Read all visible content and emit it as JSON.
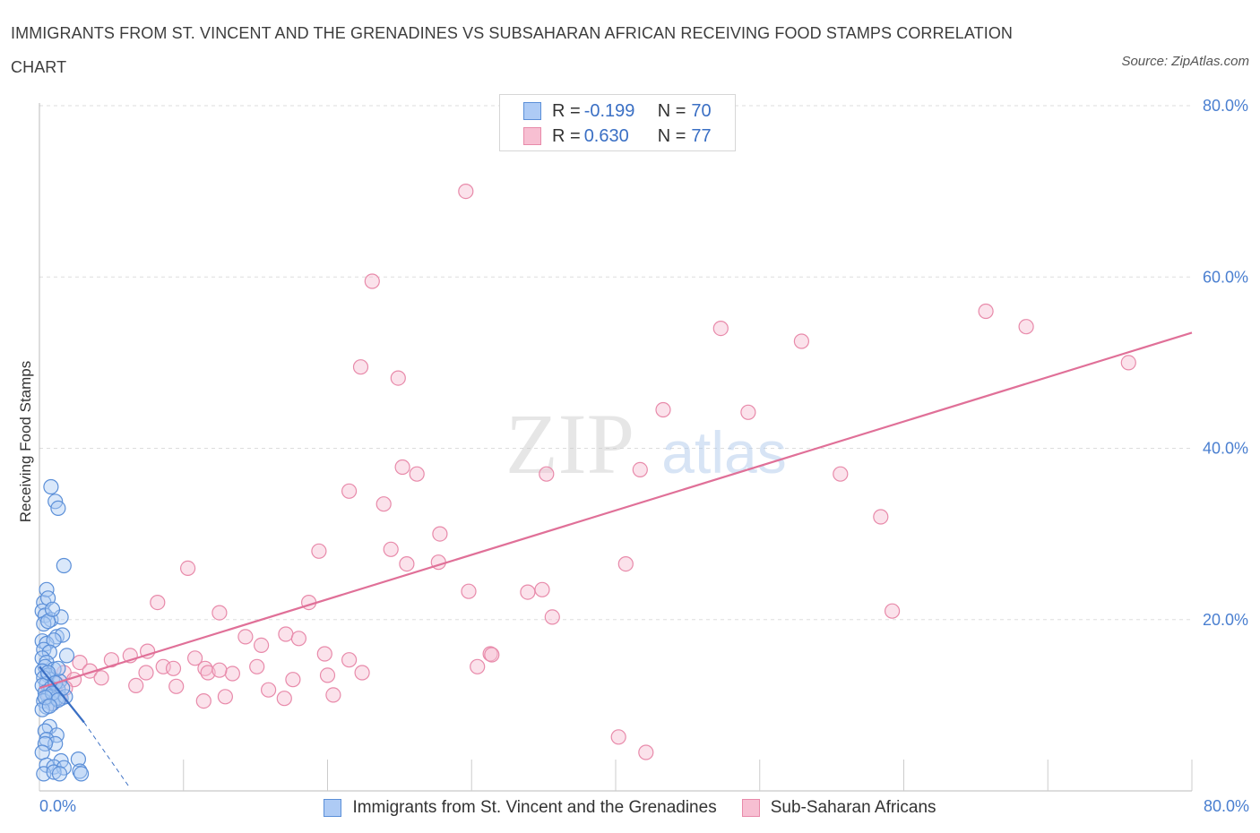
{
  "title": "IMMIGRANTS FROM ST. VINCENT AND THE GRENADINES VS SUBSAHARAN AFRICAN RECEIVING FOOD STAMPS CORRELATION CHART",
  "source": "Source: ZipAtlas.com",
  "watermark": {
    "zip": "ZIP",
    "atlas": "atlas"
  },
  "colors": {
    "blue_fill": "#aecbf5",
    "blue_stroke": "#5b8fd8",
    "blue_line": "#3a6fc4",
    "pink_fill": "#f7bfd2",
    "pink_stroke": "#e88aaa",
    "pink_line": "#e07098",
    "axis_text": "#4a7fd0",
    "grid": "#dddddd"
  },
  "legend": {
    "blue": {
      "r_label": "R =",
      "r_value": "-0.199",
      "n_label": "N =",
      "n_value": "70"
    },
    "pink": {
      "r_label": "R =",
      "r_value": "0.630",
      "n_label": "N =",
      "n_value": "77"
    }
  },
  "bottom_legend": {
    "blue_label": "Immigrants from St. Vincent and the Grenadines",
    "pink_label": "Sub-Saharan Africans"
  },
  "x_axis": {
    "min_label": "0.0%",
    "max_label": "80.0%"
  },
  "chart_data": {
    "type": "scatter",
    "title": "IMMIGRANTS FROM ST. VINCENT AND THE GRENADINES VS SUBSAHARAN AFRICAN RECEIVING FOOD STAMPS CORRELATION CHART",
    "xlabel": "",
    "ylabel": "Receiving Food Stamps",
    "xlim": [
      0,
      80
    ],
    "ylim": [
      0,
      80
    ],
    "y_ticks": [
      20,
      40,
      60,
      80
    ],
    "y_tick_labels": [
      "20.0%",
      "40.0%",
      "60.0%",
      "80.0%"
    ],
    "x_tick_labels": [
      "0.0%",
      "80.0%"
    ],
    "series": [
      {
        "name": "Immigrants from St. Vincent and the Grenadines",
        "color": "blue",
        "R": -0.199,
        "N": 70,
        "trend": {
          "x0": 0,
          "y0": 14.5,
          "x1": 3.1,
          "y1": 8.0,
          "dash_to_x": 6.3,
          "dash_to_y": 0.3
        },
        "points": [
          [
            0.3,
            22.0
          ],
          [
            0.5,
            23.5
          ],
          [
            0.6,
            22.5
          ],
          [
            0.2,
            21.0
          ],
          [
            0.4,
            20.5
          ],
          [
            0.8,
            20.0
          ],
          [
            1.5,
            20.3
          ],
          [
            0.3,
            19.5
          ],
          [
            0.6,
            19.8
          ],
          [
            1.2,
            18.0
          ],
          [
            1.6,
            18.2
          ],
          [
            0.2,
            17.5
          ],
          [
            0.5,
            17.2
          ],
          [
            1.0,
            17.6
          ],
          [
            0.3,
            16.5
          ],
          [
            0.7,
            16.2
          ],
          [
            0.2,
            15.5
          ],
          [
            0.5,
            15.0
          ],
          [
            1.9,
            15.8
          ],
          [
            0.4,
            14.5
          ],
          [
            1.0,
            14.2
          ],
          [
            0.2,
            14.0
          ],
          [
            0.6,
            13.5
          ],
          [
            0.9,
            13.0
          ],
          [
            0.3,
            13.2
          ],
          [
            1.4,
            12.8
          ],
          [
            0.5,
            12.5
          ],
          [
            0.2,
            12.3
          ],
          [
            0.8,
            12.0
          ],
          [
            1.3,
            11.8
          ],
          [
            0.4,
            11.5
          ],
          [
            1.0,
            11.2
          ],
          [
            0.6,
            11.0
          ],
          [
            1.5,
            10.8
          ],
          [
            0.3,
            10.5
          ],
          [
            0.9,
            10.2
          ],
          [
            0.5,
            9.8
          ],
          [
            0.2,
            9.5
          ],
          [
            1.2,
            10.8
          ],
          [
            1.8,
            11.0
          ],
          [
            0.7,
            7.5
          ],
          [
            0.4,
            7.0
          ],
          [
            1.2,
            6.5
          ],
          [
            0.5,
            6.0
          ],
          [
            1.1,
            5.5
          ],
          [
            0.4,
            5.5
          ],
          [
            0.2,
            4.5
          ],
          [
            1.5,
            3.5
          ],
          [
            2.7,
            3.7
          ],
          [
            0.5,
            3.0
          ],
          [
            1.0,
            2.8
          ],
          [
            1.7,
            2.7
          ],
          [
            2.8,
            2.3
          ],
          [
            0.3,
            2.0
          ],
          [
            1.0,
            2.2
          ],
          [
            1.4,
            2.0
          ],
          [
            2.9,
            2.0
          ],
          [
            0.8,
            35.5
          ],
          [
            1.1,
            33.8
          ],
          [
            1.3,
            33.0
          ],
          [
            1.7,
            26.3
          ],
          [
            0.9,
            21.2
          ],
          [
            1.3,
            14.3
          ],
          [
            0.6,
            13.8
          ],
          [
            1.1,
            12.6
          ],
          [
            1.6,
            12.0
          ],
          [
            0.9,
            11.4
          ],
          [
            0.4,
            10.9
          ],
          [
            1.3,
            10.6
          ],
          [
            0.7,
            9.9
          ]
        ]
      },
      {
        "name": "Sub-Saharan Africans",
        "color": "pink",
        "R": 0.63,
        "N": 77,
        "trend": {
          "x0": 0,
          "y0": 12.0,
          "x1": 80,
          "y1": 53.5
        },
        "points": [
          [
            29.6,
            70.0
          ],
          [
            23.1,
            59.5
          ],
          [
            65.7,
            56.0
          ],
          [
            68.5,
            54.2
          ],
          [
            47.3,
            54.0
          ],
          [
            52.9,
            52.5
          ],
          [
            75.6,
            50.0
          ],
          [
            22.3,
            49.5
          ],
          [
            24.9,
            48.2
          ],
          [
            43.3,
            44.5
          ],
          [
            49.2,
            44.2
          ],
          [
            25.2,
            37.8
          ],
          [
            26.2,
            37.0
          ],
          [
            35.2,
            37.0
          ],
          [
            41.7,
            37.5
          ],
          [
            55.6,
            37.0
          ],
          [
            21.5,
            35.0
          ],
          [
            23.9,
            33.5
          ],
          [
            58.4,
            32.0
          ],
          [
            27.8,
            30.0
          ],
          [
            24.4,
            28.2
          ],
          [
            19.4,
            28.0
          ],
          [
            25.5,
            26.5
          ],
          [
            27.7,
            26.7
          ],
          [
            40.7,
            26.5
          ],
          [
            10.3,
            26.0
          ],
          [
            29.8,
            23.3
          ],
          [
            33.9,
            23.2
          ],
          [
            34.9,
            23.5
          ],
          [
            8.2,
            22.0
          ],
          [
            18.7,
            22.0
          ],
          [
            12.5,
            20.8
          ],
          [
            35.6,
            20.3
          ],
          [
            59.2,
            21.0
          ],
          [
            14.3,
            18.0
          ],
          [
            17.1,
            18.3
          ],
          [
            18.0,
            17.8
          ],
          [
            15.4,
            17.0
          ],
          [
            7.5,
            16.3
          ],
          [
            6.3,
            15.8
          ],
          [
            19.8,
            16.0
          ],
          [
            31.3,
            16.0
          ],
          [
            21.5,
            15.3
          ],
          [
            10.8,
            15.5
          ],
          [
            5.0,
            15.3
          ],
          [
            2.8,
            15.0
          ],
          [
            8.6,
            14.5
          ],
          [
            9.3,
            14.3
          ],
          [
            11.5,
            14.3
          ],
          [
            15.1,
            14.5
          ],
          [
            3.5,
            14.0
          ],
          [
            1.7,
            13.8
          ],
          [
            7.4,
            13.8
          ],
          [
            11.7,
            13.8
          ],
          [
            13.4,
            13.7
          ],
          [
            20.0,
            13.5
          ],
          [
            22.4,
            13.8
          ],
          [
            2.4,
            13.0
          ],
          [
            4.3,
            13.2
          ],
          [
            1.2,
            12.5
          ],
          [
            17.6,
            13.0
          ],
          [
            6.7,
            12.3
          ],
          [
            1.8,
            12.0
          ],
          [
            15.9,
            11.8
          ],
          [
            0.6,
            11.5
          ],
          [
            12.9,
            11.0
          ],
          [
            17.0,
            10.8
          ],
          [
            11.4,
            10.5
          ],
          [
            20.4,
            11.2
          ],
          [
            1.4,
            10.8
          ],
          [
            0.9,
            10.2
          ],
          [
            30.4,
            14.5
          ],
          [
            31.4,
            15.9
          ],
          [
            40.2,
            6.3
          ],
          [
            42.1,
            4.5
          ],
          [
            12.5,
            14.1
          ],
          [
            9.5,
            12.2
          ]
        ]
      }
    ]
  }
}
